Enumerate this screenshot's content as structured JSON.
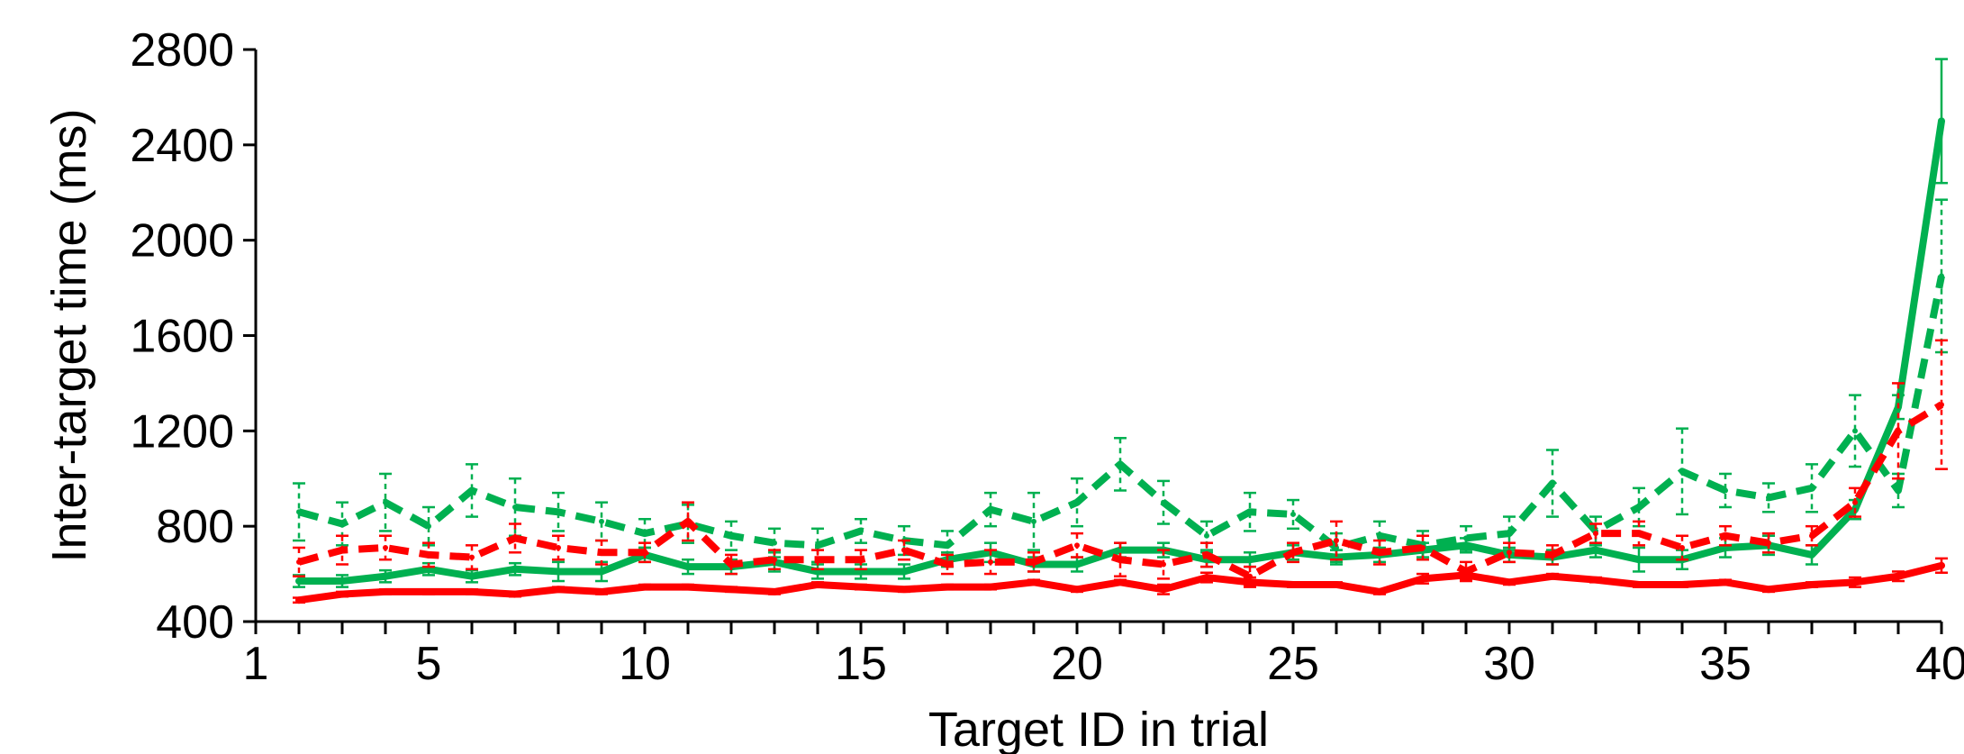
{
  "chart_data": {
    "type": "line",
    "xlabel": "Target ID in trial",
    "ylabel": "Inter-target time (ms)",
    "xlim": [
      1,
      40
    ],
    "ylim": [
      400,
      2800
    ],
    "xticks": [
      1,
      5,
      10,
      15,
      20,
      25,
      30,
      35,
      40
    ],
    "yticks": [
      400,
      800,
      1200,
      1600,
      2000,
      2400,
      2800
    ],
    "grid": false,
    "legend": "none",
    "x": [
      2,
      3,
      4,
      5,
      6,
      7,
      8,
      9,
      10,
      11,
      12,
      13,
      14,
      15,
      16,
      17,
      18,
      19,
      20,
      21,
      22,
      23,
      24,
      25,
      26,
      27,
      28,
      29,
      30,
      31,
      32,
      33,
      34,
      35,
      36,
      37,
      38,
      39,
      40
    ],
    "series": [
      {
        "color": "#00b050",
        "dash": "dashed",
        "values": [
          860,
          810,
          900,
          800,
          950,
          880,
          860,
          820,
          770,
          810,
          760,
          730,
          720,
          780,
          740,
          720,
          870,
          820,
          900,
          1060,
          900,
          760,
          860,
          850,
          710,
          760,
          720,
          750,
          770,
          980,
          780,
          880,
          1030,
          950,
          920,
          960,
          1200,
          950,
          1850
        ],
        "errors": [
          120,
          90,
          120,
          80,
          110,
          120,
          80,
          80,
          60,
          80,
          60,
          60,
          70,
          50,
          60,
          60,
          70,
          120,
          100,
          110,
          90,
          60,
          80,
          60,
          60,
          60,
          60,
          50,
          70,
          140,
          60,
          80,
          180,
          70,
          60,
          100,
          150,
          70,
          320
        ]
      },
      {
        "color": "#00b050",
        "dash": "solid",
        "values": [
          570,
          570,
          590,
          620,
          590,
          620,
          610,
          610,
          680,
          630,
          630,
          650,
          610,
          610,
          610,
          660,
          690,
          640,
          640,
          700,
          700,
          660,
          660,
          690,
          670,
          680,
          700,
          720,
          680,
          670,
          700,
          660,
          660,
          710,
          720,
          680,
          870,
          1300,
          2500
        ],
        "errors": [
          25,
          25,
          25,
          25,
          25,
          25,
          40,
          40,
          30,
          30,
          30,
          40,
          30,
          30,
          30,
          30,
          40,
          30,
          30,
          30,
          30,
          30,
          30,
          30,
          30,
          30,
          30,
          30,
          30,
          30,
          30,
          50,
          40,
          40,
          40,
          40,
          40,
          50,
          260
        ]
      },
      {
        "color": "#ff0000",
        "dash": "dashed",
        "values": [
          650,
          700,
          710,
          680,
          670,
          750,
          710,
          690,
          690,
          820,
          640,
          660,
          660,
          660,
          700,
          640,
          650,
          650,
          720,
          660,
          640,
          680,
          590,
          690,
          740,
          690,
          710,
          610,
          690,
          680,
          770,
          770,
          710,
          760,
          730,
          760,
          900,
          1200,
          1310
        ],
        "errors": [
          60,
          60,
          50,
          50,
          50,
          60,
          50,
          50,
          40,
          80,
          40,
          40,
          40,
          40,
          40,
          40,
          50,
          40,
          50,
          70,
          60,
          50,
          40,
          40,
          80,
          50,
          50,
          40,
          40,
          40,
          40,
          50,
          50,
          40,
          40,
          40,
          60,
          200,
          270
        ]
      },
      {
        "color": "#ff0000",
        "dash": "solid",
        "values": [
          490,
          515,
          525,
          525,
          525,
          515,
          535,
          525,
          545,
          545,
          535,
          525,
          555,
          545,
          535,
          545,
          545,
          565,
          535,
          565,
          535,
          585,
          565,
          555,
          555,
          525,
          580,
          595,
          565,
          590,
          575,
          555,
          555,
          565,
          535,
          555,
          565,
          590,
          635
        ],
        "errors": [
          10,
          10,
          10,
          10,
          10,
          10,
          10,
          10,
          10,
          10,
          10,
          10,
          10,
          10,
          10,
          10,
          10,
          10,
          10,
          10,
          20,
          20,
          20,
          10,
          10,
          10,
          20,
          20,
          10,
          10,
          10,
          10,
          10,
          10,
          10,
          10,
          20,
          20,
          30
        ]
      }
    ]
  }
}
